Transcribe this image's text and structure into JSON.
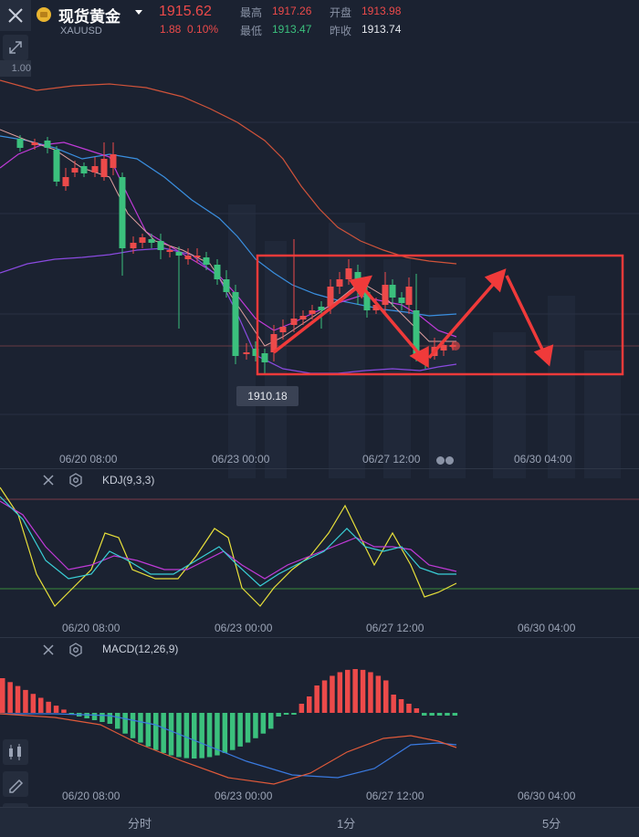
{
  "header": {
    "title": "现货黄金",
    "symbol": "XAUUSD",
    "price": "1915.62",
    "change": "1.88",
    "change_pct": "0.10%",
    "high_label": "最高",
    "high_value": "1917.26",
    "open_label": "开盘",
    "open_value": "1913.98",
    "low_label": "最低",
    "low_value": "1913.47",
    "prev_close_label": "昨收",
    "prev_close_value": "1913.74"
  },
  "main_chart": {
    "y_tag": "1.00",
    "price_callout": "1910.18",
    "x_labels": [
      "06/20 08:00",
      "06/23 00:00",
      "06/27 12:00",
      "06/30 04:00"
    ]
  },
  "kdj_panel": {
    "indicator": "KDJ(9,3,3)",
    "x_labels": [
      "06/20 08:00",
      "06/23 00:00",
      "06/27 12:00",
      "06/30 04:00"
    ]
  },
  "macd_panel": {
    "indicator": "MACD(12,26,9)",
    "x_labels": [
      "06/20 08:00",
      "06/23 00:00",
      "06/27 12:00",
      "06/30 04:00"
    ]
  },
  "tabs": [
    "分时",
    "1分",
    "5分"
  ],
  "colors": {
    "background": "#1b2231",
    "up": "#ec4a4a",
    "down": "#3bc07d",
    "annotation": "#f03a3a",
    "bb_upper": "#d0533a",
    "ma_blue": "#3a8fe0",
    "ma_magenta": "#c03ad8",
    "bb_lower": "#8a4ae0"
  }
}
